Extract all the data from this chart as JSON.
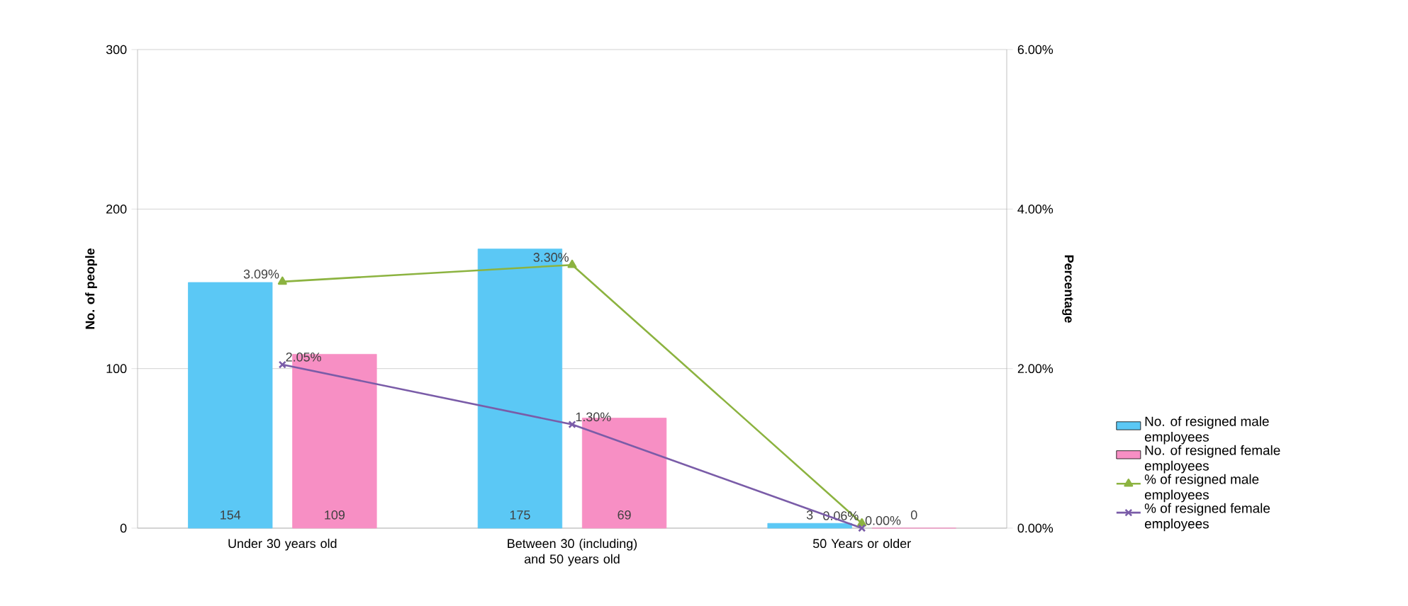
{
  "chart_data": {
    "type": "bar",
    "categories": [
      "Under 30 years old",
      "Between 30 (including) and 50 years old",
      "50 Years or older"
    ],
    "ylabel": "No. of people",
    "y2label": "Percentage",
    "ylim": [
      0,
      300
    ],
    "yticks": [
      0,
      100,
      200,
      300
    ],
    "y2lim": [
      0,
      6
    ],
    "y2ticks": [
      {
        "value": 0,
        "label": "0.00%"
      },
      {
        "value": 2,
        "label": "2.00%"
      },
      {
        "value": 4,
        "label": "4.00%"
      },
      {
        "value": 6,
        "label": "6.00%"
      }
    ],
    "grid": "y",
    "legend": "right",
    "series": [
      {
        "name": "No. of resigned male employees",
        "color": "#5bc8f5",
        "values": [
          154,
          175,
          3
        ],
        "value_labels": [
          "154",
          "175",
          "3"
        ]
      },
      {
        "name": "No. of resigned female employees",
        "color": "#f78fc4",
        "values": [
          109,
          69,
          0
        ],
        "value_labels": [
          "109",
          "69",
          "0"
        ]
      },
      {
        "name": "% of resigned male employees",
        "type": "line",
        "axis": "y2",
        "marker": "triangle",
        "color": "#8cb340",
        "values": [
          3.09,
          3.3,
          0.06
        ],
        "value_labels": [
          "3.09%",
          "3.30%",
          "0.06%"
        ]
      },
      {
        "name": "% of resigned female employees",
        "type": "line",
        "axis": "y2",
        "marker": "cross",
        "color": "#7a5ca8",
        "values": [
          2.05,
          1.3,
          0.0
        ],
        "value_labels": [
          "2.05%",
          "1.30%",
          "0.00%"
        ]
      }
    ]
  }
}
